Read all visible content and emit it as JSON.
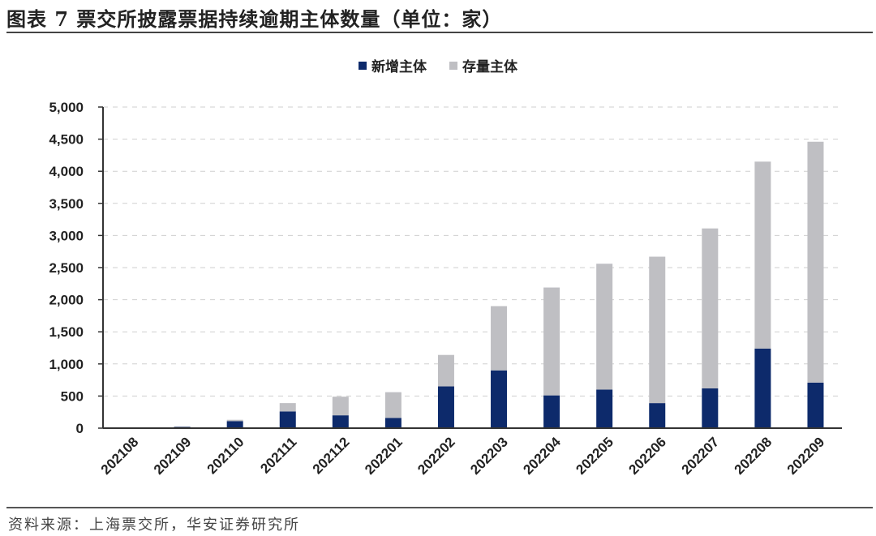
{
  "header": {
    "title": "图表 7  票交所披露票据持续逾期主体数量（单位：家）"
  },
  "legend": {
    "items": [
      {
        "label": "新增主体",
        "color": "#0d2a6b"
      },
      {
        "label": "存量主体",
        "color": "#bfbfc3"
      }
    ]
  },
  "footer": {
    "source": "资料来源：上海票交所，华安证券研究所"
  },
  "chart_data": {
    "type": "bar",
    "stacked": true,
    "title": "票交所披露票据持续逾期主体数量（单位：家）",
    "xlabel": "",
    "ylabel": "",
    "ylim": [
      0,
      5000
    ],
    "yticks": [
      0,
      500,
      1000,
      1500,
      2000,
      2500,
      3000,
      3500,
      4000,
      4500,
      5000
    ],
    "ytick_labels": [
      "0",
      "500",
      "1,000",
      "1,500",
      "2,000",
      "2,500",
      "3,000",
      "3,500",
      "4,000",
      "4,500",
      "5,000"
    ],
    "grid": "horizontal dashed",
    "legend_position": "top",
    "categories": [
      "202108",
      "202109",
      "202110",
      "202111",
      "202112",
      "202201",
      "202202",
      "202203",
      "202204",
      "202205",
      "202206",
      "202207",
      "202208",
      "202209"
    ],
    "series": [
      {
        "name": "新增主体",
        "color": "#0d2a6b",
        "values": [
          0,
          20,
          110,
          260,
          200,
          160,
          650,
          900,
          510,
          600,
          390,
          620,
          1240,
          710
        ]
      },
      {
        "name": "存量主体",
        "color": "#bfbfc3",
        "values": [
          0,
          5,
          20,
          130,
          290,
          400,
          490,
          1000,
          1680,
          1960,
          2280,
          2490,
          2910,
          3750
        ]
      }
    ]
  }
}
